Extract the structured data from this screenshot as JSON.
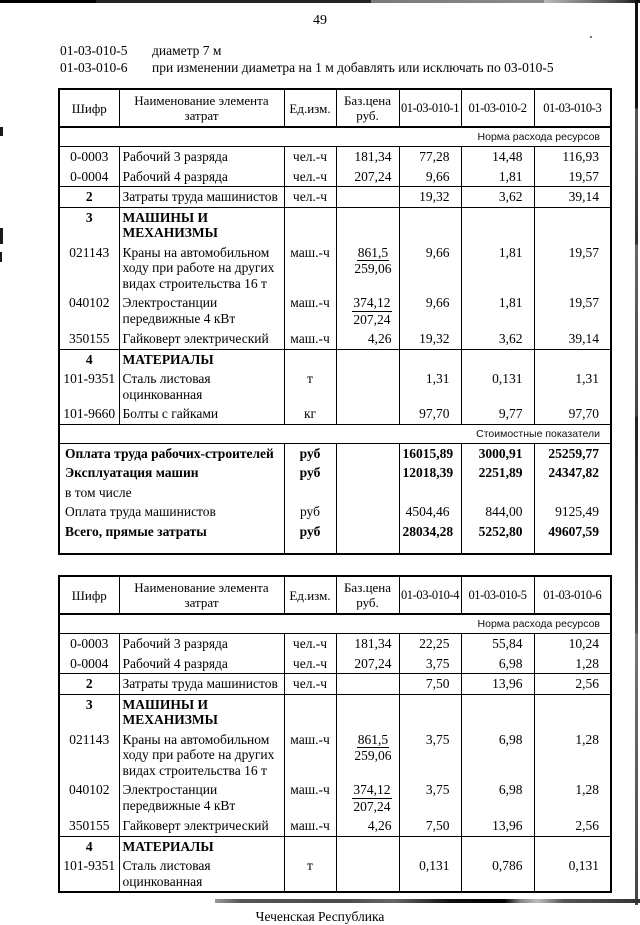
{
  "page": {
    "number": "49",
    "intro": [
      {
        "code": "01-03-010-5",
        "text": "диаметр 7 м"
      },
      {
        "code": "01-03-010-6",
        "text": "при изменении диаметра на 1 м добавлять или исключать по 03-010-5"
      }
    ],
    "footer": "Чеченская Республика"
  },
  "tables": [
    {
      "id": "cost-table-010-1-3",
      "headers": [
        "Шифр",
        "Наименование элемента затрат",
        "Ед.изм.",
        "Баз.цена руб.",
        "01-03-010-1",
        "01-03-010-2",
        "01-03-010-3"
      ],
      "rows": [
        {
          "t": "banner",
          "label": "Норма расхода ресурсов"
        },
        {
          "t": "item",
          "code": "0-0003",
          "name": "Рабочий 3 разряда",
          "unit": "чел.-ч",
          "price": "181,34",
          "vals": [
            "77,28",
            "14,48",
            "116,93"
          ]
        },
        {
          "t": "item",
          "code": "0-0004",
          "name": "Рабочий 4 разряда",
          "unit": "чел.-ч",
          "price": "207,24",
          "vals": [
            "9,66",
            "1,81",
            "19,57"
          ]
        },
        {
          "t": "item",
          "rule": true,
          "boldCode": true,
          "code": "2",
          "name": "Затраты труда машинистов",
          "unit": "чел.-ч",
          "price": "",
          "vals": [
            "19,32",
            "3,62",
            "39,14"
          ]
        },
        {
          "t": "item",
          "rule": true,
          "boldCode": true,
          "boldName": true,
          "code": "3",
          "name": "МАШИНЫ И МЕХАНИЗМЫ",
          "unit": "",
          "price": "",
          "vals": [
            "",
            "",
            ""
          ]
        },
        {
          "t": "item",
          "code": "021143",
          "name": "Краны на автомобильном ходу при работе на других видах строительства 16 т",
          "unit": "маш.-ч",
          "price": "861,5",
          "price2": "259,06",
          "vals": [
            "9,66",
            "1,81",
            "19,57"
          ]
        },
        {
          "t": "item",
          "code": "040102",
          "name": "Электростанции передвижные 4 кВт",
          "unit": "маш.-ч",
          "price": "374,12",
          "price2": "207,24",
          "vals": [
            "9,66",
            "1,81",
            "19,57"
          ]
        },
        {
          "t": "item",
          "code": "350155",
          "name": "Гайковерт электрический",
          "unit": "маш.-ч",
          "price": "4,26",
          "vals": [
            "19,32",
            "3,62",
            "39,14"
          ]
        },
        {
          "t": "item",
          "rule": true,
          "boldCode": true,
          "boldName": true,
          "code": "4",
          "name": "МАТЕРИАЛЫ",
          "unit": "",
          "price": "",
          "vals": [
            "",
            "",
            ""
          ]
        },
        {
          "t": "item",
          "code": "101-9351",
          "name": "Сталь листовая оцинкованная",
          "unit": "т",
          "price": "",
          "vals": [
            "1,31",
            "0,131",
            "1,31"
          ]
        },
        {
          "t": "item",
          "code": "101-9660",
          "name": "Болты с гайками",
          "unit": "кг",
          "price": "",
          "vals": [
            "97,70",
            "9,77",
            "97,70"
          ]
        },
        {
          "t": "banner",
          "rule": true,
          "label": "Стоимостные показатели"
        },
        {
          "t": "summary",
          "bold": true,
          "label": "Оплата труда рабочих-строителей",
          "unit": "руб",
          "vals": [
            "16015,89",
            "3000,91",
            "25259,77"
          ]
        },
        {
          "t": "summary",
          "bold": true,
          "label": "Эксплуатация машин",
          "unit": "руб",
          "vals": [
            "12018,39",
            "2251,89",
            "24347,82"
          ]
        },
        {
          "t": "summary",
          "label": "в том числе",
          "unit": "",
          "vals": [
            "",
            "",
            ""
          ]
        },
        {
          "t": "summary",
          "label": "Оплата труда машинистов",
          "unit": "руб",
          "vals": [
            "4504,46",
            "844,00",
            "9125,49"
          ]
        },
        {
          "t": "summary",
          "bold": true,
          "last": true,
          "label": "Всего, прямые затраты",
          "unit": "руб",
          "vals": [
            "28034,28",
            "5252,80",
            "49607,59"
          ]
        }
      ]
    },
    {
      "id": "cost-table-010-4-6",
      "headers": [
        "Шифр",
        "Наименование элемента затрат",
        "Ед.изм.",
        "Баз.цена руб.",
        "01-03-010-4",
        "01-03-010-5",
        "01-03-010-6"
      ],
      "rows": [
        {
          "t": "banner",
          "label": "Норма расхода ресурсов"
        },
        {
          "t": "item",
          "code": "0-0003",
          "name": "Рабочий 3 разряда",
          "unit": "чел.-ч",
          "price": "181,34",
          "vals": [
            "22,25",
            "55,84",
            "10,24"
          ]
        },
        {
          "t": "item",
          "code": "0-0004",
          "name": "Рабочий 4 разряда",
          "unit": "чел.-ч",
          "price": "207,24",
          "vals": [
            "3,75",
            "6,98",
            "1,28"
          ]
        },
        {
          "t": "item",
          "rule": true,
          "boldCode": true,
          "code": "2",
          "name": "Затраты труда машинистов",
          "unit": "чел.-ч",
          "price": "",
          "vals": [
            "7,50",
            "13,96",
            "2,56"
          ]
        },
        {
          "t": "item",
          "rule": true,
          "boldCode": true,
          "boldName": true,
          "code": "3",
          "name": "МАШИНЫ И МЕХАНИЗМЫ",
          "unit": "",
          "price": "",
          "vals": [
            "",
            "",
            ""
          ]
        },
        {
          "t": "item",
          "code": "021143",
          "name": "Краны на автомобильном ходу при работе на других видах строительства 16 т",
          "unit": "маш.-ч",
          "price": "861,5",
          "price2": "259,06",
          "vals": [
            "3,75",
            "6,98",
            "1,28"
          ]
        },
        {
          "t": "item",
          "code": "040102",
          "name": "Электростанции передвижные 4 кВт",
          "unit": "маш.-ч",
          "price": "374,12",
          "price2": "207,24",
          "vals": [
            "3,75",
            "6,98",
            "1,28"
          ]
        },
        {
          "t": "item",
          "code": "350155",
          "name": "Гайковерт электрический",
          "unit": "маш.-ч",
          "price": "4,26",
          "vals": [
            "7,50",
            "13,96",
            "2,56"
          ]
        },
        {
          "t": "item",
          "rule": true,
          "boldCode": true,
          "boldName": true,
          "code": "4",
          "name": "МАТЕРИАЛЫ",
          "unit": "",
          "price": "",
          "vals": [
            "",
            "",
            ""
          ]
        },
        {
          "t": "item",
          "code": "101-9351",
          "name": "Сталь листовая оцинкованная",
          "unit": "т",
          "price": "",
          "vals": [
            "0,131",
            "0,786",
            "0,131"
          ]
        }
      ]
    }
  ]
}
